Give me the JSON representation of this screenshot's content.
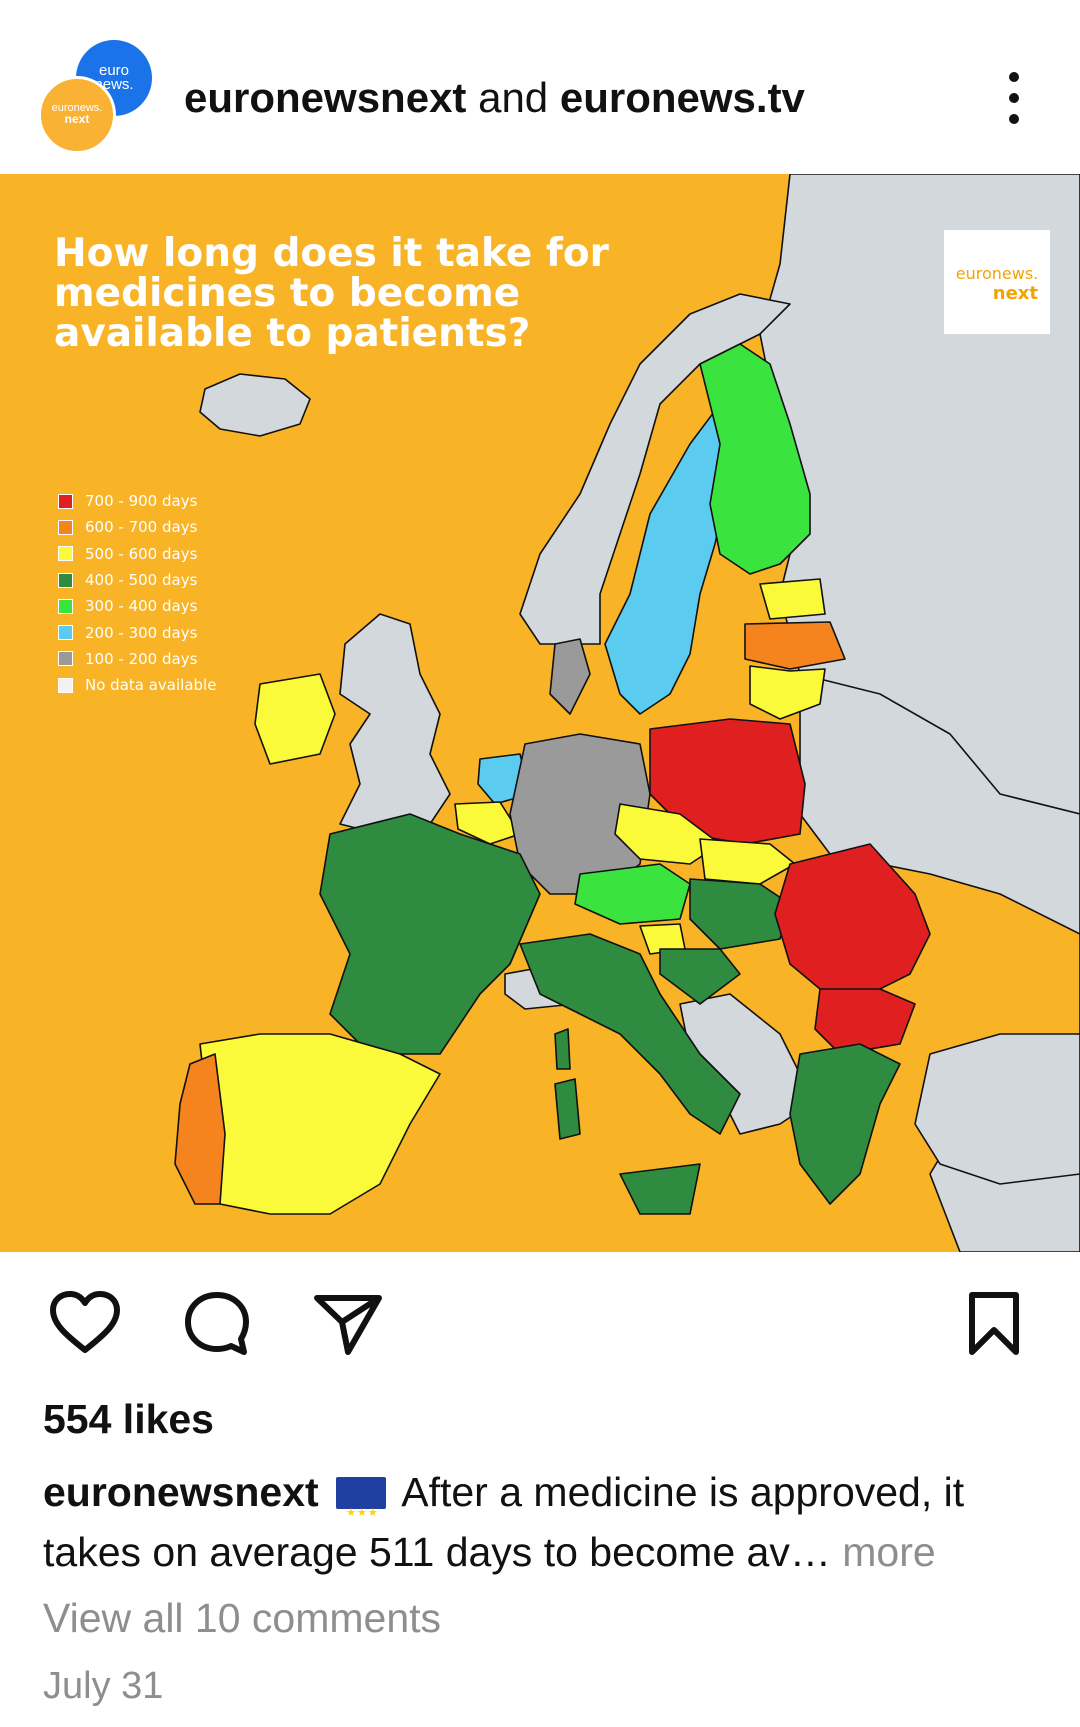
{
  "header": {
    "avatar_top_text": "euro\nnews.",
    "avatar_bottom_text_1": "euronews.",
    "avatar_bottom_text_2": "next",
    "account_1": "euronewsnext",
    "joiner": " and ",
    "account_2": "euronews.tv",
    "more_icon": "vertical-ellipsis-icon"
  },
  "post_image": {
    "title": "How long does it take for medicines to become available to patients?",
    "brand_line_1": "euronews.",
    "brand_line_2": "next",
    "legend": [
      {
        "label": "700 - 900 days",
        "color": "#e02020"
      },
      {
        "label": "600 - 700 days",
        "color": "#f5841f"
      },
      {
        "label": "500 - 600 days",
        "color": "#fafa3a"
      },
      {
        "label": "400 - 500 days",
        "color": "#2e8b3f"
      },
      {
        "label": "300 - 400 days",
        "color": "#3be33f"
      },
      {
        "label": "200 - 300 days",
        "color": "#5bcbf0"
      },
      {
        "label": "100 - 200 days",
        "color": "#9a9a9a"
      },
      {
        "label": "No data available",
        "color": "#f2f2f2"
      }
    ],
    "sea_color": "#f9b327",
    "non_eu_color": "#d2d8dc"
  },
  "actions": {
    "like_icon": "heart-icon",
    "comment_icon": "comment-bubble-icon",
    "share_icon": "paper-plane-icon",
    "save_icon": "bookmark-icon"
  },
  "likes": "554 likes",
  "caption": {
    "username": "euronewsnext",
    "flag_icon": "eu-flag-icon",
    "text": "After a medicine is approved, it takes on average 511 days to become av",
    "ellipsis": "…",
    "more": " more"
  },
  "view_all_comments": "View all 10 comments",
  "date": "July 31"
}
